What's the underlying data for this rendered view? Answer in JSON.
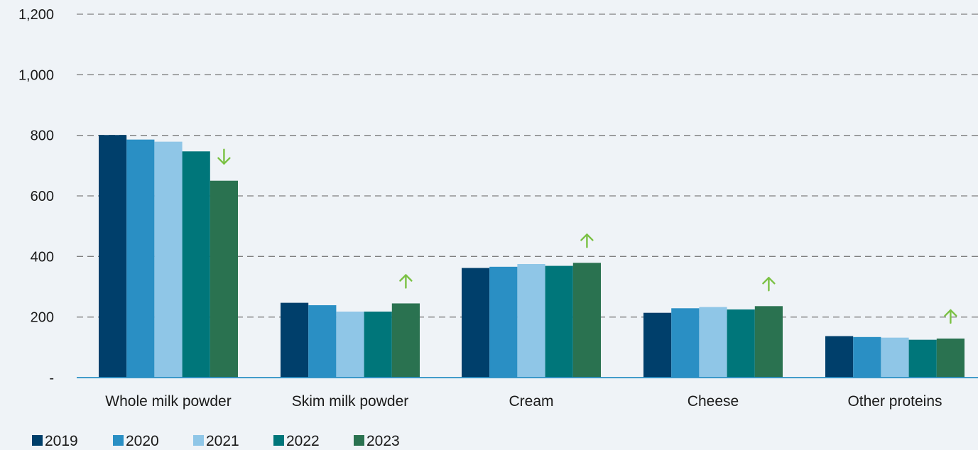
{
  "chart_data": {
    "type": "bar",
    "categories": [
      "Whole milk powder",
      "Skim milk powder",
      "Cream",
      "Cheese",
      "Other proteins"
    ],
    "series": [
      {
        "name": "2019",
        "color": "#003f6b",
        "values": [
          801,
          247,
          362,
          214,
          137
        ]
      },
      {
        "name": "2020",
        "color": "#2a8fc4",
        "values": [
          786,
          239,
          366,
          229,
          134
        ]
      },
      {
        "name": "2021",
        "color": "#8fc6e7",
        "values": [
          779,
          218,
          375,
          233,
          132
        ]
      },
      {
        "name": "2022",
        "color": "#00767a",
        "values": [
          747,
          218,
          369,
          225,
          125
        ]
      },
      {
        "name": "2023",
        "color": "#2a7250",
        "values": [
          650,
          245,
          379,
          236,
          129
        ]
      }
    ],
    "ylim": [
      0,
      1200
    ],
    "yticks": [
      0,
      200,
      400,
      600,
      800,
      1000,
      1200
    ],
    "ytick_labels": [
      "-",
      "200",
      "400",
      "600",
      "800",
      "1,000",
      "1,200"
    ],
    "grid": true,
    "legend_position": "bottom-left",
    "trend_arrows": [
      "down",
      "up",
      "up",
      "up",
      "up"
    ],
    "arrow_color": "#7ac143",
    "axis_color": "#2a8fc4",
    "grid_color": "#7f7f7f"
  }
}
